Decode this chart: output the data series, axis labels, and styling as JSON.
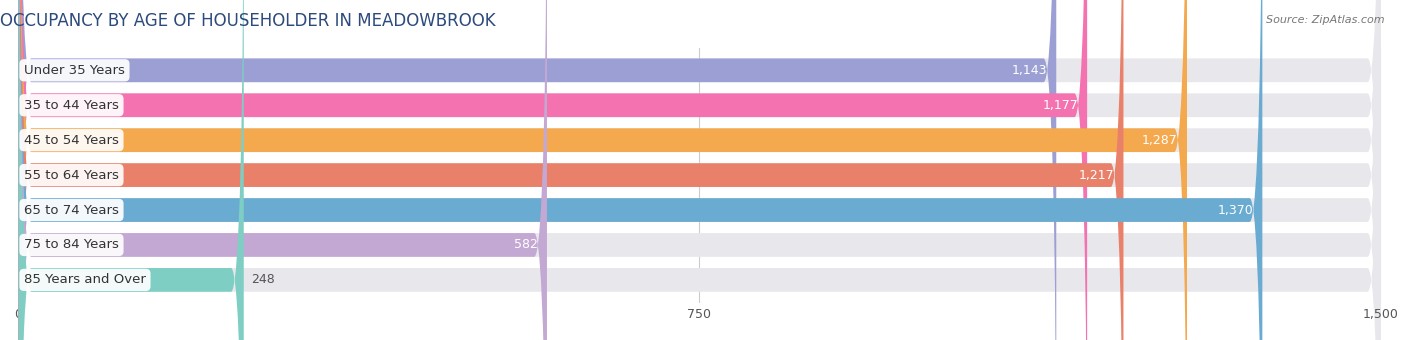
{
  "title": "OCCUPANCY BY AGE OF HOUSEHOLDER IN MEADOWBROOK",
  "source": "Source: ZipAtlas.com",
  "categories": [
    "Under 35 Years",
    "35 to 44 Years",
    "45 to 54 Years",
    "55 to 64 Years",
    "65 to 74 Years",
    "75 to 84 Years",
    "85 Years and Over"
  ],
  "values": [
    1143,
    1177,
    1287,
    1217,
    1370,
    582,
    248
  ],
  "bar_colors": [
    "#9B9FD4",
    "#F472B0",
    "#F5A94E",
    "#E8806A",
    "#6AABD2",
    "#C4A8D4",
    "#7ECEC4"
  ],
  "xlim_max": 1500,
  "xticks": [
    0,
    750,
    1500
  ],
  "background_color": "#ffffff",
  "bar_bg_color": "#e8e8ec",
  "title_fontsize": 12,
  "label_fontsize": 9.5,
  "value_fontsize": 9
}
